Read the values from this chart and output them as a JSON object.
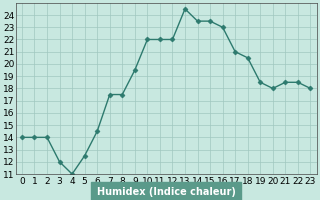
{
  "x": [
    0,
    1,
    2,
    3,
    4,
    5,
    6,
    7,
    8,
    9,
    10,
    11,
    12,
    13,
    14,
    15,
    16,
    17,
    18,
    19,
    20,
    21,
    22,
    23
  ],
  "y": [
    14,
    14,
    14,
    12,
    11,
    12.5,
    14.5,
    17.5,
    17.5,
    19.5,
    22,
    22,
    22,
    24.5,
    23.5,
    23.5,
    23,
    21,
    20.5,
    18.5,
    18,
    18.5,
    18.5,
    18
  ],
  "line_color": "#2d7a6e",
  "marker": "D",
  "markersize": 2.5,
  "linewidth": 1.0,
  "xlabel": "Humidex (Indice chaleur)",
  "xlim": [
    -0.5,
    23.5
  ],
  "ylim": [
    11,
    25
  ],
  "yticks": [
    11,
    12,
    13,
    14,
    15,
    16,
    17,
    18,
    19,
    20,
    21,
    22,
    23,
    24
  ],
  "xticks": [
    0,
    1,
    2,
    3,
    4,
    5,
    6,
    7,
    8,
    9,
    10,
    11,
    12,
    13,
    14,
    15,
    16,
    17,
    18,
    19,
    20,
    21,
    22,
    23
  ],
  "background_color": "#c8e8e0",
  "plot_bg_color": "#c8e8e0",
  "grid_color": "#a0c8c0",
  "xlabel_bg_color": "#5a9a8a",
  "label_fontsize": 7,
  "tick_fontsize": 6.5
}
